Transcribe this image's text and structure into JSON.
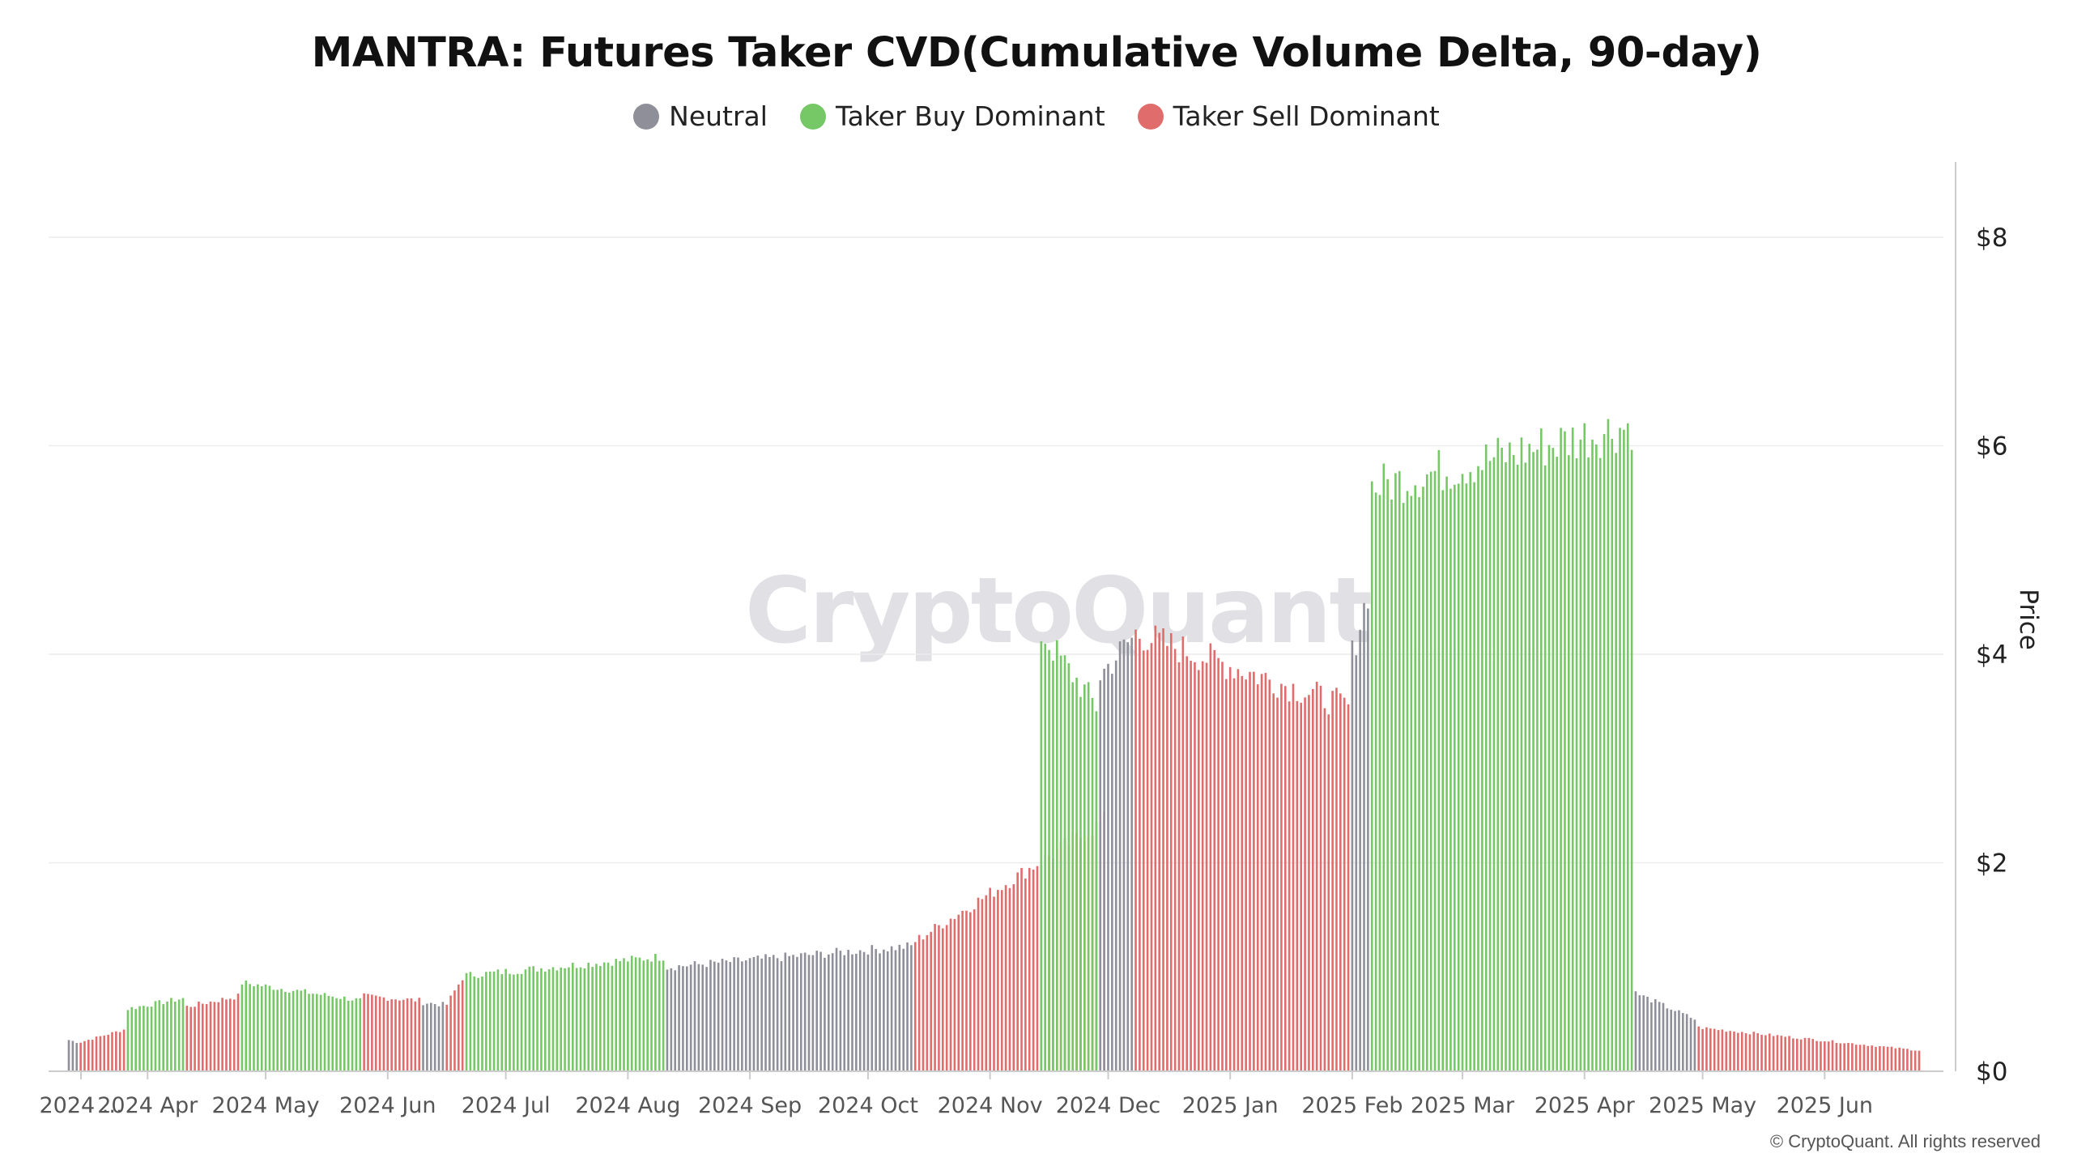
{
  "chart_data": {
    "type": "bar",
    "title": "MANTRA: Futures Taker CVD(Cumulative Volume Delta, 90-day)",
    "ylabel": "Price",
    "ylim": [
      0,
      8.8
    ],
    "y_ticks": [
      {
        "value": 0,
        "label": "$0"
      },
      {
        "value": 2,
        "label": "$2"
      },
      {
        "value": 4,
        "label": "$4"
      },
      {
        "value": 6,
        "label": "$6"
      },
      {
        "value": 8,
        "label": "$8"
      }
    ],
    "x_start": "2024-03-12",
    "x_end": "2025-06-25",
    "x_ticks": [
      {
        "date": "2024-03-01",
        "label": "2024 ..."
      },
      {
        "date": "2024-04-01",
        "label": "2024 Apr"
      },
      {
        "date": "2024-05-01",
        "label": "2024 May"
      },
      {
        "date": "2024-06-01",
        "label": "2024 Jun"
      },
      {
        "date": "2024-07-01",
        "label": "2024 Jul"
      },
      {
        "date": "2024-08-01",
        "label": "2024 Aug"
      },
      {
        "date": "2024-09-01",
        "label": "2024 Sep"
      },
      {
        "date": "2024-10-01",
        "label": "2024 Oct"
      },
      {
        "date": "2024-11-01",
        "label": "2024 Nov"
      },
      {
        "date": "2024-12-01",
        "label": "2024 Dec"
      },
      {
        "date": "2025-01-01",
        "label": "2025 Jan"
      },
      {
        "date": "2025-02-01",
        "label": "2025 Feb"
      },
      {
        "date": "2025-03-01",
        "label": "2025 Mar"
      },
      {
        "date": "2025-04-01",
        "label": "2025 Apr"
      },
      {
        "date": "2025-05-01",
        "label": "2025 May"
      },
      {
        "date": "2025-06-01",
        "label": "2025 Jun"
      }
    ],
    "legend": {
      "placement": "top-center"
    },
    "grid": true,
    "series": [
      {
        "name": "Neutral",
        "color": "#8f8f99"
      },
      {
        "name": "Taker Buy Dominant",
        "color": "#76c866"
      },
      {
        "name": "Taker Sell Dominant",
        "color": "#e06c6c"
      }
    ],
    "segments": [
      {
        "start": "2024-03-12",
        "end": "2024-03-14",
        "series": "Neutral",
        "price_start": 0.3,
        "price_end": 0.28
      },
      {
        "start": "2024-03-15",
        "end": "2024-03-26",
        "series": "Taker Sell Dominant",
        "price_start": 0.28,
        "price_end": 0.4
      },
      {
        "start": "2024-03-27",
        "end": "2024-04-10",
        "series": "Taker Buy Dominant",
        "price_start": 0.6,
        "price_end": 0.7
      },
      {
        "start": "2024-04-11",
        "end": "2024-04-24",
        "series": "Taker Sell Dominant",
        "price_start": 0.62,
        "price_end": 0.72
      },
      {
        "start": "2024-04-25",
        "end": "2024-05-25",
        "series": "Taker Buy Dominant",
        "price_start": 0.85,
        "price_end": 0.68
      },
      {
        "start": "2024-05-26",
        "end": "2024-06-09",
        "series": "Taker Sell Dominant",
        "price_start": 0.72,
        "price_end": 0.68
      },
      {
        "start": "2024-06-10",
        "end": "2024-06-15",
        "series": "Neutral",
        "price_start": 0.66,
        "price_end": 0.64
      },
      {
        "start": "2024-06-16",
        "end": "2024-06-20",
        "series": "Taker Sell Dominant",
        "price_start": 0.64,
        "price_end": 0.9
      },
      {
        "start": "2024-06-21",
        "end": "2024-08-10",
        "series": "Taker Buy Dominant",
        "price_start": 0.92,
        "price_end": 1.1
      },
      {
        "start": "2024-08-11",
        "end": "2024-10-12",
        "series": "Neutral",
        "price_start": 1.0,
        "price_end": 1.2
      },
      {
        "start": "2024-10-13",
        "end": "2024-11-30",
        "series": "Taker Sell Dominant",
        "price_start": 1.25,
        "price_end": 2.4
      },
      {
        "start": "2024-11-14",
        "end": "2024-11-28",
        "series": "Taker Buy Dominant",
        "price_start": 4.2,
        "price_end": 3.5
      },
      {
        "start": "2024-11-29",
        "end": "2024-12-07",
        "series": "Neutral",
        "price_start": 3.8,
        "price_end": 4.15
      },
      {
        "start": "2024-12-08",
        "end": "2025-01-31",
        "series": "Taker Sell Dominant",
        "price_start": 4.2,
        "price_end": 3.5
      },
      {
        "start": "2025-02-01",
        "end": "2025-02-05",
        "series": "Neutral",
        "price_start": 4.0,
        "price_end": 4.6
      },
      {
        "start": "2025-02-06",
        "end": "2025-04-13",
        "series": "Taker Buy Dominant",
        "price_start": 5.6,
        "price_end": 6.2
      },
      {
        "start": "2025-04-14",
        "end": "2025-04-29",
        "series": "Neutral",
        "price_start": 0.75,
        "price_end": 0.5
      },
      {
        "start": "2025-04-30",
        "end": "2025-06-25",
        "series": "Taker Sell Dominant",
        "price_start": 0.42,
        "price_end": 0.2
      }
    ]
  },
  "watermark": "CryptoQuant",
  "copyright": "© CryptoQuant. All rights reserved"
}
